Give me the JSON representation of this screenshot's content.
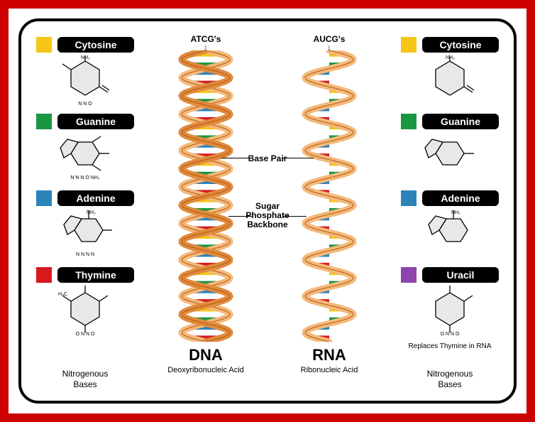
{
  "colors": {
    "outer_border": "#cc0000",
    "inner_bg": "#ffffff",
    "pill_bg": "#000000",
    "pill_fg": "#ffffff",
    "swatch_cytosine": "#f5c518",
    "swatch_guanine": "#1a9641",
    "swatch_adenine": "#2b83ba",
    "swatch_thymine": "#d7191c",
    "swatch_uracil": "#8e44ad",
    "helix_backbone": "#e08a3c",
    "helix_backbone_light": "#f4b97a",
    "chem_fill": "#e8e8e8"
  },
  "left_bases": [
    {
      "label": "Cytosine",
      "swatch": "#f5c518"
    },
    {
      "label": "Guanine",
      "swatch": "#1a9641"
    },
    {
      "label": "Adenine",
      "swatch": "#2b83ba"
    },
    {
      "label": "Thymine",
      "swatch": "#d7191c"
    }
  ],
  "right_bases": [
    {
      "label": "Cytosine",
      "swatch": "#f5c518"
    },
    {
      "label": "Guanine",
      "swatch": "#1a9641"
    },
    {
      "label": "Adenine",
      "swatch": "#2b83ba"
    },
    {
      "label": "Uracil",
      "swatch": "#8e44ad"
    }
  ],
  "left_footer": "Nitrogenous\nBases",
  "right_footer": "Nitrogenous\nBases",
  "right_note": "Replaces Thymine in RNA",
  "dna": {
    "top": "ATCG's",
    "title": "DNA",
    "subtitle": "Deoxyribonucleic Acid"
  },
  "rna": {
    "top": "AUCG's",
    "title": "RNA",
    "subtitle": "Ribonucleic Acid"
  },
  "annot": {
    "base_pair": "Base Pair",
    "backbone_l1": "Sugar",
    "backbone_l2": "Phosphate",
    "backbone_l3": "Backbone"
  },
  "helix": {
    "twists": 8,
    "rung_colors": [
      "#f5c518",
      "#1a9641",
      "#2b83ba",
      "#d7191c"
    ]
  }
}
